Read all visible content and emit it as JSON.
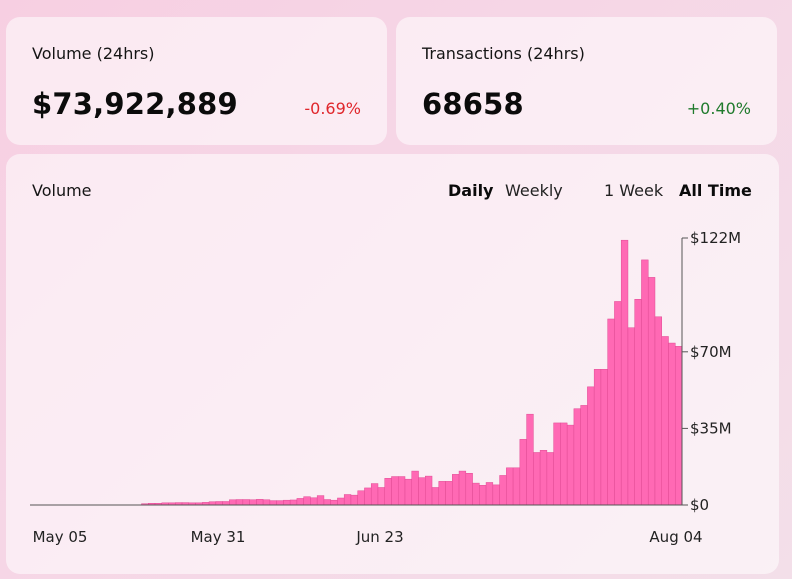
{
  "volume_card": {
    "title": "Volume (24hrs)",
    "value": "$73,922,889",
    "change": "-0.69%"
  },
  "tx_card": {
    "title": "Transactions (24hrs)",
    "value": "68658",
    "change": "+0.40%"
  },
  "chart_panel": {
    "title": "Volume",
    "tabs": {
      "daily": "Daily",
      "weekly": "Weekly",
      "one_week": "1 Week",
      "all_time": "All Time"
    },
    "active_interval": "Daily",
    "active_range": "All Time"
  },
  "colors": {
    "bar": "#ff69b4",
    "bar_stroke": "#e04a93",
    "negative": "#e0262b",
    "positive": "#1f7a2c"
  },
  "chart_data": {
    "type": "bar",
    "title": "Volume",
    "xlabel": "",
    "ylabel": "",
    "x_tick_labels": [
      "May 05",
      "May 31",
      "Jun 23",
      "Aug 04"
    ],
    "y_tick_labels": [
      "$0",
      "$35M",
      "$70M",
      "$122M"
    ],
    "y_ticks": [
      0,
      35,
      70,
      122
    ],
    "ylim": [
      0,
      122
    ],
    "y_unit": "$M",
    "grid": false,
    "values": [
      0.1,
      0.1,
      0.1,
      0.1,
      0.1,
      0.1,
      0.1,
      0.1,
      0.1,
      0.1,
      0.1,
      0.1,
      0.1,
      0.1,
      0.6,
      0.8,
      0.8,
      1,
      1,
      1.1,
      1.1,
      1,
      1,
      1.2,
      1.5,
      1.6,
      1.6,
      2.4,
      2.5,
      2.5,
      2.4,
      2.6,
      2.4,
      2,
      2,
      2.2,
      2.3,
      3,
      3.8,
      3.3,
      4.3,
      2.5,
      2.2,
      3.2,
      4.8,
      4.5,
      6.5,
      7.8,
      9.8,
      8,
      12.2,
      13,
      13,
      11.8,
      15.5,
      12.5,
      13.2,
      8,
      10.8,
      10.8,
      14,
      15.5,
      14.5,
      10,
      9,
      10.3,
      9.2,
      13.5,
      17,
      17,
      30,
      41.5,
      24,
      25,
      24,
      37.5,
      37.5,
      36.5,
      44,
      45.5,
      54,
      62,
      62,
      85,
      93,
      121,
      81,
      94,
      112,
      104,
      86,
      77,
      74,
      72.5
    ]
  }
}
